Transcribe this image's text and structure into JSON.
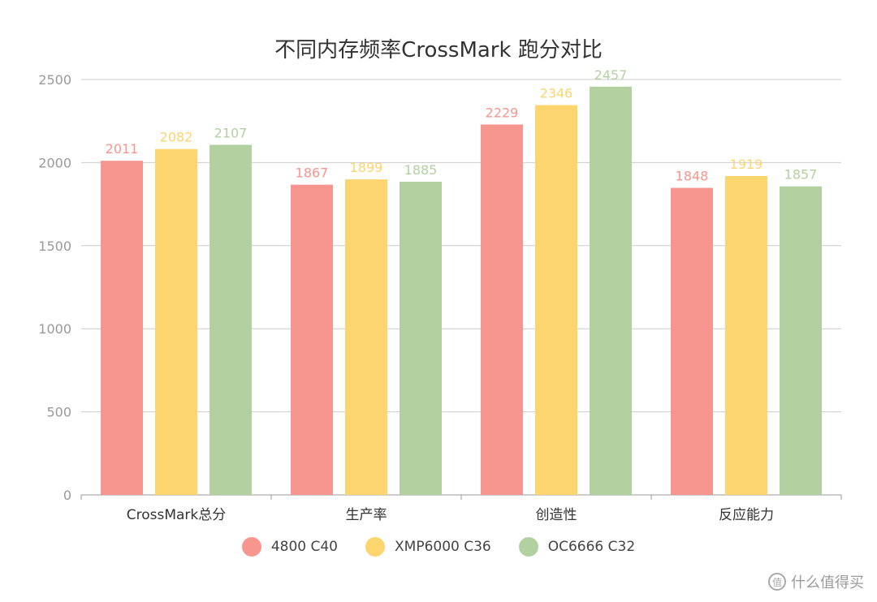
{
  "chart_data": {
    "type": "bar",
    "title": "不同内存频率CrossMark 跑分对比",
    "categories": [
      "CrossMark总分",
      "生产率",
      "创造性",
      "反应能力"
    ],
    "series": [
      {
        "name": "4800 C40",
        "color": "#f7968e",
        "values": [
          2011,
          1867,
          2229,
          1848
        ]
      },
      {
        "name": "XMP6000 C36",
        "color": "#fdd56f",
        "values": [
          2082,
          1899,
          2346,
          1919
        ]
      },
      {
        "name": "OC6666 C32",
        "color": "#b3d1a0",
        "values": [
          2107,
          1885,
          2457,
          1857
        ]
      }
    ],
    "ylim": [
      0,
      2500
    ],
    "yticks": [
      0,
      500,
      1000,
      1500,
      2000,
      2500
    ],
    "xlabel": "",
    "ylabel": "",
    "grid": true,
    "legend": "bottom-center"
  },
  "watermark": {
    "icon": "zhi-logo-icon",
    "glyph": "值",
    "text": "什么值得买"
  }
}
